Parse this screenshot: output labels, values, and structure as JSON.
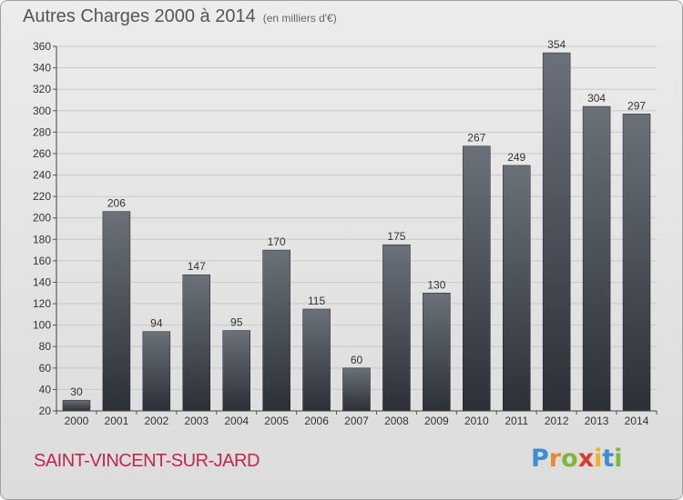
{
  "header": {
    "title": "Autres Charges 2000 à 2014",
    "subtitle": "(en milliers d'€)"
  },
  "footer": {
    "commune": "SAINT-VINCENT-SUR-JARD",
    "logo": [
      {
        "ch": "P",
        "color": "#3a8fd6"
      },
      {
        "ch": "r",
        "color": "#e8892a"
      },
      {
        "ch": "o",
        "color": "#7cb83a"
      },
      {
        "ch": "x",
        "color": "#e23a2a"
      },
      {
        "ch": "i",
        "color": "#f2b21c"
      },
      {
        "ch": "t",
        "color": "#3a8fd6"
      },
      {
        "ch": "i",
        "color": "#7cb83a"
      }
    ]
  },
  "chart_data": {
    "type": "bar",
    "title": "Autres Charges 2000 à 2014",
    "subtitle": "(en milliers d'€)",
    "categories": [
      "2000",
      "2001",
      "2002",
      "2003",
      "2004",
      "2005",
      "2006",
      "2007",
      "2008",
      "2009",
      "2010",
      "2011",
      "2012",
      "2013",
      "2014"
    ],
    "values": [
      30,
      206,
      94,
      147,
      95,
      170,
      115,
      60,
      175,
      130,
      267,
      249,
      354,
      304,
      297
    ],
    "ylim": [
      20,
      360
    ],
    "yticks": [
      20,
      40,
      60,
      80,
      100,
      120,
      140,
      160,
      180,
      200,
      220,
      240,
      260,
      280,
      300,
      320,
      340,
      360
    ],
    "grid": true,
    "colors": {
      "bar_top": "#6a7178",
      "bar_bottom": "#2b3036",
      "grid": "#c8c8c8",
      "text": "#333333"
    }
  }
}
